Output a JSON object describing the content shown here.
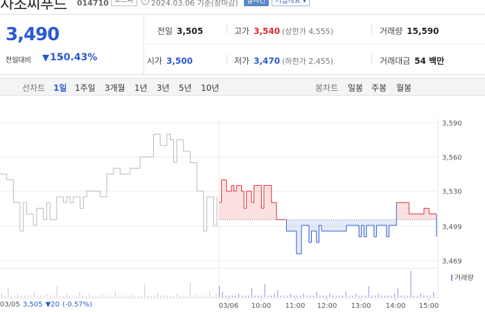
{
  "header": {
    "stock_name": "사조씨푸드",
    "stock_code": "014710",
    "market": "코스피",
    "date_text": "2024.03.06  기준(장마감)",
    "realtime_label": "실시간",
    "company_label": "기업개요 ▾"
  },
  "summary": {
    "current_price": "3,490",
    "change_label": "전일대비",
    "change_value": "15",
    "change_rate": "-0.43%",
    "prev_close": {
      "label": "전일",
      "value": "3,505"
    },
    "high": {
      "label": "고가",
      "value": "3,540",
      "sub": "(상한가 4,555)"
    },
    "volume": {
      "label": "거래량",
      "value": "15,590"
    },
    "open": {
      "label": "시가",
      "value": "3,500"
    },
    "low": {
      "label": "저가",
      "value": "3,470",
      "sub": "(하한가 2,455)"
    },
    "amount": {
      "label": "거래대금",
      "value": "54 백만"
    }
  },
  "toolbar": {
    "line_chart_label": "선차트",
    "periods": [
      "1일",
      "1주일",
      "3개월",
      "1년",
      "3년",
      "5년",
      "10년"
    ],
    "active_period": "1일",
    "candle_label": "봉차트",
    "candles": [
      "일봉",
      "주봉",
      "월봉"
    ]
  },
  "colors": {
    "up": "#e0282e",
    "down": "#2b5bd1",
    "prev_day_line": "#b8b8b8",
    "volume": "#8a8ad8"
  },
  "chart_data": {
    "type": "line",
    "y_ticks": [
      "3,590",
      "3,560",
      "3,530",
      "3,499",
      "3,469"
    ],
    "ylim": [
      3469,
      3590
    ],
    "baseline": 3505,
    "x_ticks": [
      "03/05",
      "03/06",
      "10:00",
      "11:00",
      "12:00",
      "13:00",
      "14:00",
      "15:00"
    ],
    "prev_day_series": [
      3545,
      3545,
      3540,
      3540,
      3520,
      3520,
      3495,
      3520,
      3510,
      3510,
      3500,
      3515,
      3515,
      3505,
      3520,
      3505,
      3505,
      3525,
      3525,
      3520,
      3525,
      3520,
      3525,
      3525,
      3515,
      3525,
      3530,
      3530,
      3530,
      3530,
      3525,
      3525,
      3545,
      3545,
      3550,
      3550,
      3545,
      3545,
      3545,
      3550,
      3550,
      3550,
      3560,
      3560,
      3560,
      3560,
      3580,
      3580,
      3570,
      3570,
      3580,
      3575,
      3555,
      3575,
      3575,
      3565,
      3565,
      3555,
      3555,
      3530,
      3530,
      3495,
      3525,
      3525,
      3500,
      3525
    ],
    "today_series": [
      3520,
      3540,
      3540,
      3530,
      3530,
      3535,
      3530,
      3535,
      3535,
      3530,
      3515,
      3530,
      3530,
      3520,
      3535,
      3535,
      3535,
      3515,
      3535,
      3535,
      3535,
      3520,
      3520,
      3505,
      3505,
      3505,
      3505,
      3495,
      3495,
      3495,
      3495,
      3475,
      3475,
      3500,
      3500,
      3500,
      3485,
      3495,
      3495,
      3485,
      3500,
      3495,
      3495,
      3495,
      3495,
      3495,
      3495,
      3495,
      3495,
      3495,
      3495,
      3500,
      3500,
      3500,
      3500,
      3500,
      3490,
      3500,
      3490,
      3500,
      3500,
      3500,
      3490,
      3500,
      3500,
      3500,
      3500,
      3490,
      3500,
      3500,
      3500,
      3520,
      3520,
      3520,
      3520,
      3520,
      3510,
      3510,
      3510,
      3510,
      3510,
      3510,
      3515,
      3515,
      3510,
      3510,
      3510,
      3490
    ],
    "volume_series": [
      2,
      1,
      5,
      1,
      1,
      2,
      1,
      1,
      1,
      1,
      3,
      1,
      1,
      1,
      2,
      1,
      1,
      6,
      1,
      1,
      2,
      1,
      1,
      1,
      3,
      1,
      1,
      2,
      1,
      1,
      1,
      2,
      1,
      1,
      1,
      3,
      1,
      1,
      1,
      1,
      2,
      1,
      1,
      1,
      7,
      1,
      1,
      1,
      2,
      1,
      1,
      1,
      1,
      1,
      2,
      1,
      1,
      1,
      8,
      1,
      2,
      1,
      1,
      1,
      3,
      1,
      2,
      6,
      3,
      1,
      1,
      1,
      1,
      2,
      1,
      1,
      1,
      5,
      1,
      1,
      1,
      7,
      1,
      1,
      2,
      4,
      1,
      1,
      1,
      2,
      1,
      1,
      1,
      2,
      1,
      1,
      1,
      3,
      1,
      1,
      1,
      2,
      1,
      1,
      1,
      1,
      3,
      1,
      1,
      2,
      1,
      1,
      1,
      6,
      1,
      1,
      2,
      1,
      1,
      1,
      1,
      2,
      5,
      1,
      1,
      1,
      14,
      1,
      1,
      2,
      1,
      1,
      1,
      3
    ],
    "volume_label": "거래량",
    "footer": {
      "date": "03/05",
      "price": "3,505",
      "change": "▼20",
      "rate": "(-0.57%)"
    }
  }
}
